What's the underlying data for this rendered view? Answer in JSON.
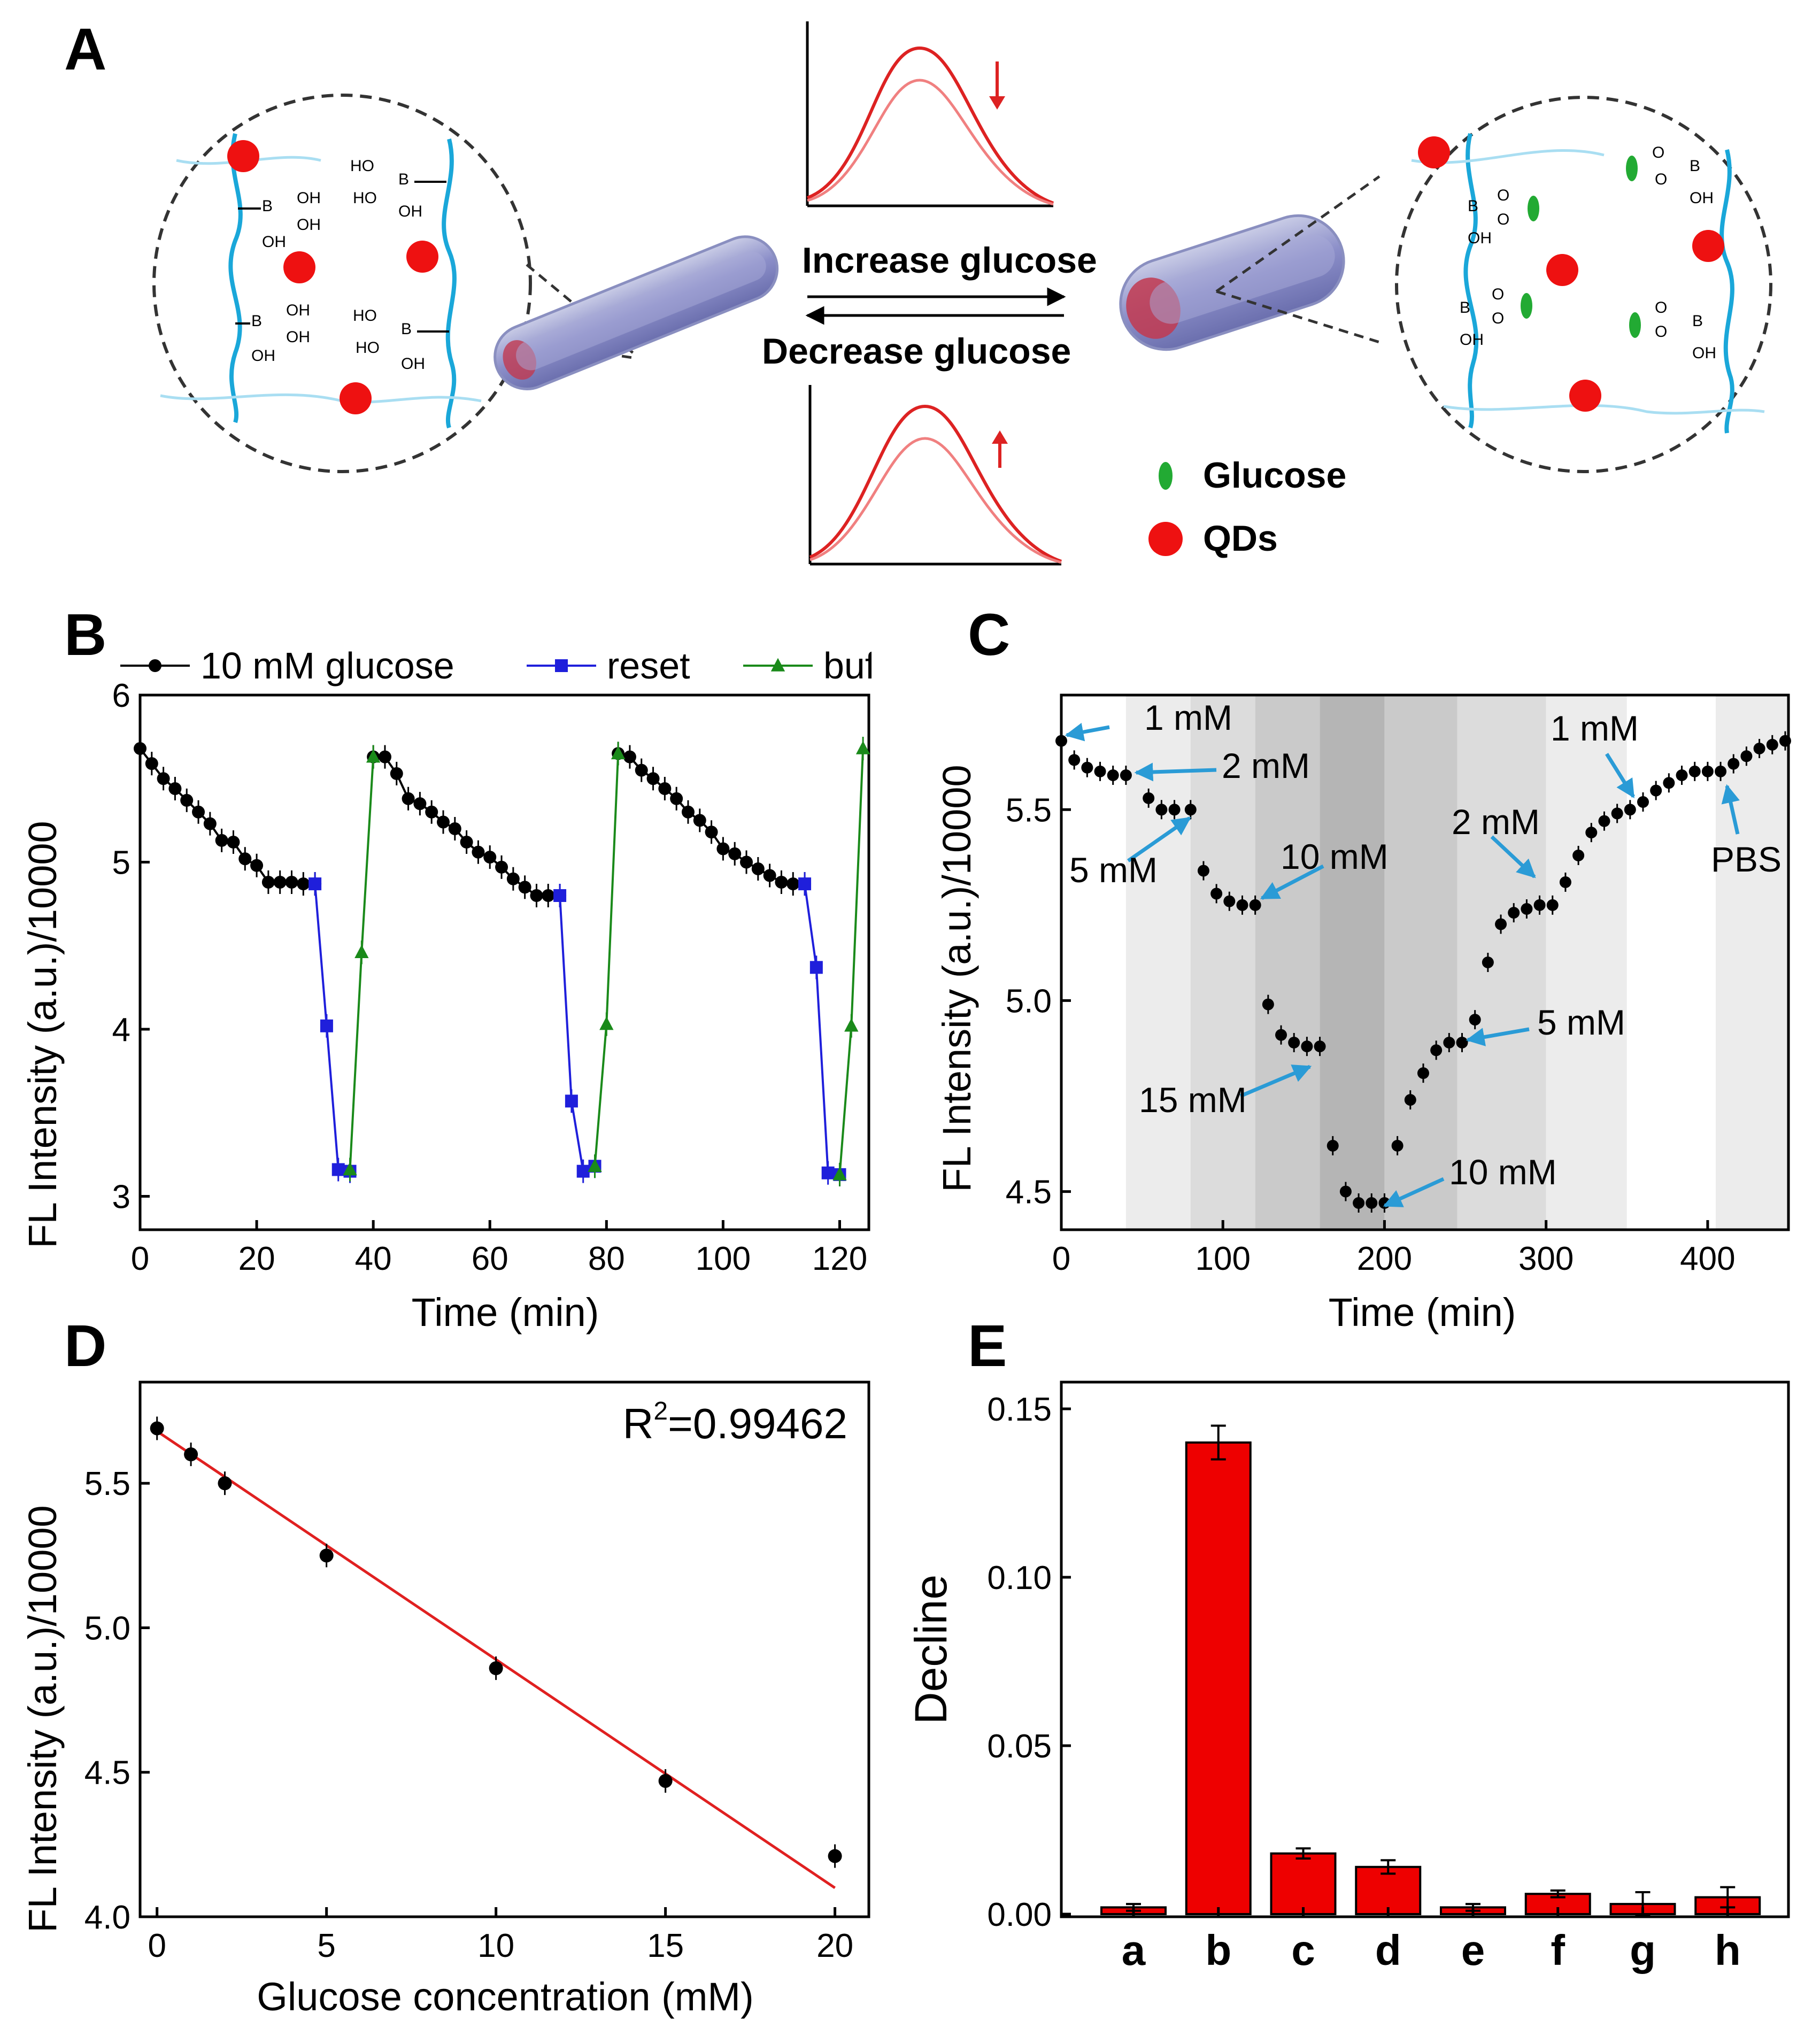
{
  "panels": {
    "A": "A",
    "B": "B",
    "C": "C",
    "D": "D",
    "E": "E"
  },
  "schematic": {
    "increase": "Increase glucose",
    "decrease": "Decrease glucose",
    "legend": {
      "glucose": "Glucose",
      "qds": "QDs"
    },
    "chem": {
      "b": "B",
      "ho": "HO",
      "oh": "OH",
      "o": "O",
      "minus": "⊖"
    }
  },
  "chart_data": [
    {
      "type": "line",
      "panel": "B",
      "xlabel": "Time (min)",
      "ylabel": "FL Intensity (a.u.)/10000",
      "xlim": [
        0,
        125
      ],
      "ylim": [
        2.8,
        6
      ],
      "xticks": [
        "0",
        "20",
        "40",
        "60",
        "80",
        "100",
        "120"
      ],
      "yticks": [
        "3",
        "4",
        "5",
        "6"
      ],
      "legend_position": "top",
      "series": [
        {
          "name": "10 mM glucose",
          "color": "#000000",
          "marker": "circle",
          "segments": [
            {
              "x": [
                0,
                2,
                4,
                6,
                8,
                10,
                12,
                14,
                16,
                18,
                20,
                22,
                24,
                26,
                28,
                30
              ],
              "y": [
                5.68,
                5.59,
                5.5,
                5.44,
                5.37,
                5.3,
                5.23,
                5.13,
                5.12,
                5.02,
                4.98,
                4.88,
                4.88,
                4.88,
                4.87,
                4.87
              ]
            },
            {
              "x": [
                40,
                42,
                44,
                46,
                48,
                50,
                52,
                54,
                56,
                58,
                60,
                62,
                64,
                66,
                68,
                70,
                72
              ],
              "y": [
                5.63,
                5.63,
                5.53,
                5.38,
                5.35,
                5.3,
                5.24,
                5.2,
                5.12,
                5.06,
                5.03,
                4.97,
                4.9,
                4.85,
                4.8,
                4.8,
                4.8
              ]
            },
            {
              "x": [
                82,
                84,
                86,
                88,
                90,
                92,
                94,
                96,
                98,
                100,
                102,
                104,
                106,
                108,
                110,
                112,
                114
              ],
              "y": [
                5.65,
                5.63,
                5.55,
                5.5,
                5.44,
                5.38,
                5.3,
                5.25,
                5.18,
                5.08,
                5.05,
                5.0,
                4.96,
                4.92,
                4.88,
                4.87,
                4.87
              ]
            }
          ]
        },
        {
          "name": "reset",
          "color": "#1f1fdb",
          "marker": "square",
          "segments": [
            {
              "x": [
                30,
                32,
                34,
                36
              ],
              "y": [
                4.87,
                4.02,
                3.16,
                3.15
              ]
            },
            {
              "x": [
                72,
                74,
                76,
                78
              ],
              "y": [
                4.8,
                3.57,
                3.15,
                3.18
              ]
            },
            {
              "x": [
                114,
                116,
                118,
                120
              ],
              "y": [
                4.87,
                4.37,
                3.14,
                3.13
              ]
            }
          ]
        },
        {
          "name": "buffer",
          "color": "#1a8a1a",
          "marker": "triangle",
          "segments": [
            {
              "x": [
                36,
                38,
                40
              ],
              "y": [
                3.16,
                4.46,
                5.63
              ]
            },
            {
              "x": [
                78,
                80,
                82
              ],
              "y": [
                3.18,
                4.03,
                5.65
              ]
            },
            {
              "x": [
                120,
                122,
                124
              ],
              "y": [
                3.13,
                4.02,
                5.68
              ]
            }
          ]
        }
      ]
    },
    {
      "type": "scatter",
      "panel": "C",
      "xlabel": "Time (min)",
      "ylabel": "FL Intensity (a.u.)/10000",
      "xlim": [
        0,
        450
      ],
      "ylim": [
        4.4,
        5.8
      ],
      "xticks": [
        "0",
        "100",
        "200",
        "300",
        "400"
      ],
      "yticks": [
        "4.5",
        "5.0",
        "5.5"
      ],
      "bands": [
        {
          "from": 0,
          "to": 40,
          "shade": "#ffffff"
        },
        {
          "from": 40,
          "to": 80,
          "shade": "#ececec"
        },
        {
          "from": 80,
          "to": 120,
          "shade": "#dcdcdc"
        },
        {
          "from": 120,
          "to": 160,
          "shade": "#cacaca"
        },
        {
          "from": 160,
          "to": 200,
          "shade": "#b5b5b5"
        },
        {
          "from": 200,
          "to": 245,
          "shade": "#cacaca"
        },
        {
          "from": 245,
          "to": 300,
          "shade": "#dcdcdc"
        },
        {
          "from": 300,
          "to": 350,
          "shade": "#ececec"
        },
        {
          "from": 350,
          "to": 405,
          "shade": "#ffffff"
        },
        {
          "from": 405,
          "to": 450,
          "shade": "#ececec"
        }
      ],
      "x": [
        0,
        8,
        16,
        24,
        32,
        40,
        54,
        62,
        70,
        80,
        88,
        96,
        104,
        112,
        120,
        128,
        136,
        144,
        152,
        160,
        168,
        176,
        184,
        192,
        200,
        208,
        216,
        224,
        232,
        240,
        248,
        256,
        264,
        272,
        280,
        288,
        296,
        304,
        312,
        320,
        328,
        336,
        344,
        352,
        360,
        368,
        376,
        384,
        392,
        400,
        408,
        416,
        424,
        432,
        440,
        448
      ],
      "y": [
        5.68,
        5.63,
        5.61,
        5.6,
        5.59,
        5.59,
        5.53,
        5.5,
        5.5,
        5.5,
        5.34,
        5.28,
        5.26,
        5.25,
        5.25,
        4.99,
        4.91,
        4.89,
        4.88,
        4.88,
        4.62,
        4.5,
        4.47,
        4.47,
        4.47,
        4.62,
        4.74,
        4.81,
        4.87,
        4.89,
        4.89,
        4.95,
        5.1,
        5.2,
        5.23,
        5.24,
        5.25,
        5.25,
        5.31,
        5.38,
        5.44,
        5.47,
        5.49,
        5.5,
        5.52,
        5.55,
        5.57,
        5.59,
        5.6,
        5.6,
        5.6,
        5.62,
        5.64,
        5.66,
        5.67,
        5.68
      ],
      "annotations": [
        "1 mM",
        "2 mM",
        "5 mM",
        "10 mM",
        "15 mM",
        "10 mM",
        "5 mM",
        "2 mM",
        "1 mM",
        "PBS"
      ]
    },
    {
      "type": "scatter",
      "panel": "D",
      "xlabel": "Glucose concentration (mM)",
      "ylabel": "FL Intensity (a.u.)/10000",
      "xlim": [
        -0.5,
        21
      ],
      "ylim": [
        4.0,
        5.85
      ],
      "xticks": [
        "0",
        "5",
        "10",
        "15",
        "20"
      ],
      "yticks": [
        "4.0",
        "4.5",
        "5.0",
        "5.5"
      ],
      "x": [
        0,
        1,
        2,
        5,
        10,
        15,
        20
      ],
      "y": [
        5.69,
        5.6,
        5.5,
        5.25,
        4.86,
        4.47,
        4.21
      ],
      "fit": {
        "x0": 0,
        "y0": 5.68,
        "x1": 20,
        "y1": 4.1
      },
      "r2_prefix": "R",
      "r2_sup": "2",
      "r2_value": "=0.99462"
    },
    {
      "type": "bar",
      "panel": "E",
      "ylabel": "Decline",
      "ylim": [
        0,
        0.15
      ],
      "yticks": [
        "0.00",
        "0.05",
        "0.10",
        "0.15"
      ],
      "categories": [
        "a",
        "b",
        "c",
        "d",
        "e",
        "f",
        "g",
        "h"
      ],
      "values": [
        0.002,
        0.14,
        0.018,
        0.014,
        0.002,
        0.006,
        0.003,
        0.005
      ],
      "errors": [
        0.001,
        0.005,
        0.0015,
        0.002,
        0.001,
        0.001,
        0.0035,
        0.003
      ],
      "color": "#ee0000"
    }
  ],
  "colors": {
    "glucose": "#22aa33",
    "qd": "#ee1111",
    "chain": "#1aa7d9",
    "arrow": "#2a9bd6",
    "spectrum": "#dd2222"
  }
}
